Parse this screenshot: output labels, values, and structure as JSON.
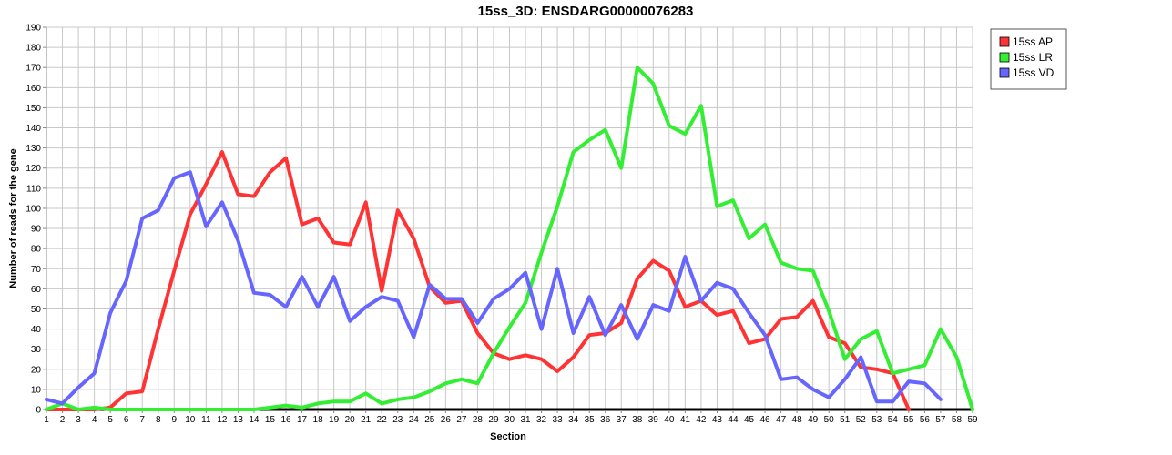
{
  "chart_data": {
    "type": "line",
    "title": "15ss_3D: ENSDARG00000076283",
    "xlabel": "Section",
    "ylabel": "Number of reads for the gene",
    "x": [
      1,
      2,
      3,
      4,
      5,
      6,
      7,
      8,
      9,
      10,
      11,
      12,
      13,
      14,
      15,
      16,
      17,
      18,
      19,
      20,
      21,
      22,
      23,
      24,
      25,
      26,
      27,
      28,
      29,
      30,
      31,
      32,
      33,
      34,
      35,
      36,
      37,
      38,
      39,
      40,
      41,
      42,
      43,
      44,
      45,
      46,
      47,
      48,
      49,
      50,
      51,
      52,
      53,
      54,
      55,
      56,
      57,
      58,
      59
    ],
    "xlim": [
      1,
      59
    ],
    "ylim": [
      0,
      190
    ],
    "yticks": [
      0,
      10,
      20,
      30,
      40,
      50,
      60,
      70,
      80,
      90,
      100,
      110,
      120,
      130,
      140,
      150,
      160,
      170,
      180,
      190
    ],
    "grid": true,
    "legend_position": "top-right",
    "series": [
      {
        "name": "15ss AP",
        "color": "#ff3333",
        "values": [
          0,
          0,
          0,
          0,
          1,
          8,
          9,
          40,
          69,
          97,
          112,
          128,
          107,
          106,
          118,
          125,
          92,
          95,
          83,
          82,
          103,
          59,
          99,
          85,
          61,
          53,
          54,
          38,
          28,
          25,
          27,
          25,
          19,
          26,
          37,
          38,
          43,
          65,
          74,
          69,
          51,
          54,
          47,
          49,
          33,
          35,
          45,
          46,
          54,
          36,
          33,
          21,
          20,
          18,
          0,
          null,
          null,
          null,
          null
        ]
      },
      {
        "name": "15ss LR",
        "color": "#33ee33",
        "values": [
          0,
          3,
          0,
          1,
          0,
          0,
          0,
          0,
          0,
          0,
          0,
          0,
          0,
          0,
          1,
          2,
          1,
          3,
          4,
          4,
          8,
          3,
          5,
          6,
          9,
          13,
          15,
          13,
          28,
          41,
          53,
          78,
          101,
          128,
          134,
          139,
          120,
          170,
          162,
          141,
          137,
          151,
          101,
          104,
          85,
          92,
          73,
          70,
          69,
          49,
          25,
          35,
          39,
          18,
          20,
          22,
          40,
          26,
          0
        ]
      },
      {
        "name": "15ss VD",
        "color": "#6666ff",
        "values": [
          5,
          3,
          11,
          18,
          48,
          64,
          95,
          99,
          115,
          118,
          91,
          103,
          84,
          58,
          57,
          51,
          66,
          51,
          66,
          44,
          51,
          56,
          54,
          36,
          62,
          55,
          55,
          43,
          55,
          60,
          68,
          40,
          70,
          38,
          56,
          37,
          52,
          35,
          52,
          49,
          76,
          54,
          63,
          60,
          48,
          37,
          15,
          16,
          10,
          6,
          15,
          26,
          4,
          4,
          14,
          13,
          5,
          null,
          null
        ]
      }
    ]
  }
}
